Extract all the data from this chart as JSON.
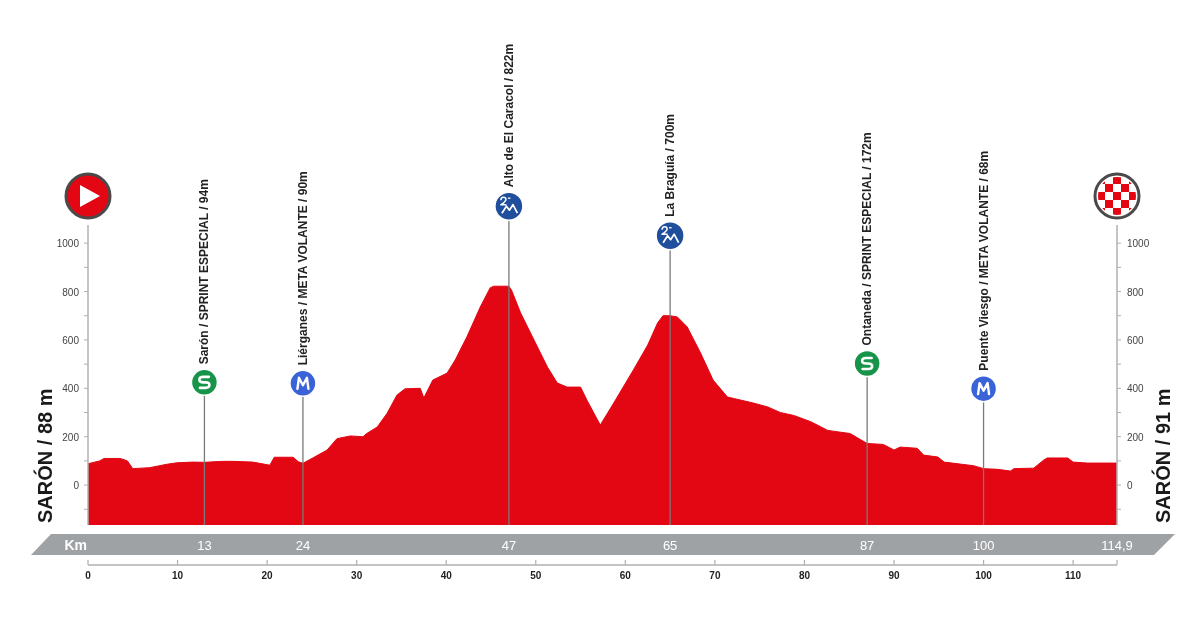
{
  "chart_data": {
    "type": "area",
    "ylabel": "SARÓN / 88 m",
    "y2label": "SARÓN / 91 m",
    "x2label": "Km",
    "x": [
      0,
      1.3,
      1.8,
      3.6,
      4.4,
      5.0,
      6.9,
      8.8,
      9.9,
      11.7,
      13,
      15,
      16.2,
      18.4,
      19.6,
      20.3,
      20.8,
      22.9,
      23.5,
      24,
      25.1,
      26.7,
      27.8,
      29.3,
      30.7,
      31.2,
      32.3,
      33.4,
      34.5,
      35.4,
      37.1,
      37.5,
      38.5,
      40.1,
      41.0,
      42.3,
      43.8,
      44.9,
      45.3,
      47,
      47.3,
      48.3,
      49.8,
      51.3,
      52.4,
      53.5,
      55.0,
      55.7,
      56.9,
      57.2,
      58.7,
      60.9,
      62.5,
      63.6,
      64.2,
      65,
      65.8,
      66.9,
      68.4,
      69.8,
      71.4,
      72.1,
      74.3,
      75.9,
      77.3,
      78.8,
      80.7,
      82.6,
      85.1,
      86.3,
      87,
      88.8,
      90,
      90.7,
      92.6,
      93.3,
      94.9,
      95.6,
      98.9,
      100,
      101.6,
      103,
      103.4,
      105.6,
      106.7,
      107.1,
      109.4,
      110,
      111.6,
      114.9
    ],
    "values": [
      88,
      100,
      110,
      110,
      100,
      68,
      72,
      86,
      92,
      95,
      94,
      98,
      98,
      95,
      87,
      82,
      115,
      115,
      96,
      90,
      112,
      145,
      192,
      203,
      200,
      215,
      240,
      297,
      372,
      398,
      400,
      360,
      434,
      463,
      517,
      612,
      736,
      815,
      822,
      822,
      805,
      712,
      600,
      488,
      422,
      405,
      405,
      352,
      269,
      248,
      339,
      476,
      579,
      670,
      700,
      700,
      695,
      654,
      546,
      434,
      364,
      358,
      339,
      323,
      300,
      288,
      262,
      226,
      213,
      187,
      172,
      168,
      145,
      157,
      152,
      124,
      116,
      95,
      80,
      68,
      65,
      58,
      68,
      70,
      103,
      112,
      112,
      95,
      91,
      91
    ],
    "color": "#e30613",
    "xlim": [
      0,
      114.9
    ],
    "xticks": [
      0,
      10,
      20,
      30,
      40,
      50,
      60,
      70,
      80,
      90,
      100,
      110,
      {
        "value": 114.9,
        "label": null
      }
    ],
    "x2lim": [
      0,
      114.9
    ],
    "x2ticks": [
      13,
      24,
      47,
      65,
      87,
      100,
      {
        "value": 114.9,
        "label": "114,9"
      }
    ],
    "ylim": [
      -165,
      1075
    ],
    "yticks": [
      {
        "value": -100,
        "label": null
      },
      0,
      {
        "value": 100,
        "label": null
      },
      200,
      {
        "value": 300,
        "label": null
      },
      400,
      {
        "value": 500,
        "label": null
      },
      600,
      {
        "value": 700,
        "label": null
      },
      800,
      {
        "value": 900,
        "label": null
      },
      1000
    ],
    "y2lim": [
      -165,
      1075
    ],
    "y2ticks": [
      {
        "value": -100,
        "label": null
      },
      0,
      {
        "value": 100,
        "label": null
      },
      200,
      {
        "value": 300,
        "label": null
      },
      400,
      {
        "value": 500,
        "label": null
      },
      600,
      {
        "value": 700,
        "label": null
      },
      800,
      {
        "value": 900,
        "label": null
      },
      1000
    ],
    "bands": [
      {
        "axis": "y",
        "from": -165,
        "to": 0,
        "color": "#e30613"
      }
    ],
    "ref_lines": [
      {
        "axis": "x",
        "value": 13,
        "label": "Sarón / SPRINT ESPECIAL / 94m",
        "color": "#7a7a7a"
      },
      {
        "axis": "x",
        "value": 24,
        "label": "Liérganes / META VOLANTE / 90m",
        "color": "#7a7a7a"
      },
      {
        "axis": "x",
        "value": 47,
        "label": "Alto de El Caracol / 822m",
        "color": "#7a7a7a"
      },
      {
        "axis": "x",
        "value": 65,
        "label": "La Braguía / 700m",
        "color": "#7a7a7a"
      },
      {
        "axis": "x",
        "value": 87,
        "label": "Ontaneda / SPRINT ESPECIAL / 172m",
        "color": "#7a7a7a"
      },
      {
        "axis": "x",
        "value": 100,
        "label": "Puente Viesgo / META VOLANTE / 68m",
        "color": "#7a7a7a"
      }
    ]
  }
}
